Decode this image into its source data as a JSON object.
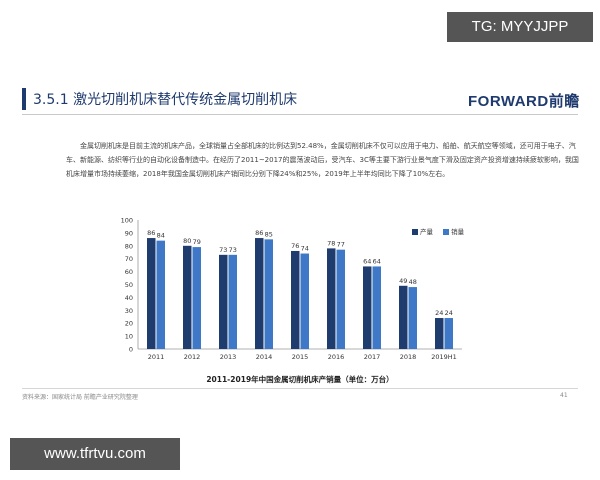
{
  "watermarks": {
    "top": "TG: MYYJJPP",
    "bottom": "www.tfrtvu.com"
  },
  "header": {
    "section_title": "3.5.1  激光切削机床替代传统金属切削机床",
    "logo": "FORWARD前瞻"
  },
  "body_text": "金属切削机床是目前主流的机床产品，全球销量占全部机床的比例达到52.48%，金属切削机床不仅可以应用于电力、船舶、航天航空等领域，还可用于电子、汽车、新能源、纺织等行业的自动化设备制造中。在经历了2011~2017的震荡波动后，受汽车、3C等主要下游行业景气度下滑及固定资产投资增速持续疲软影响，我国机床增量市场持续萎缩，2018年我国金属切削机床产销同比分别下降24%和25%，2019年上半年均同比下降了10%左右。",
  "colors": {
    "produce": "#1f3c6e",
    "sales": "#3e78c6",
    "accent": "#1e3a6e"
  },
  "chart_data": {
    "type": "bar",
    "title": "2011-2019年中国金属切削机床产销量（单位：万台）",
    "categories": [
      "2011",
      "2012",
      "2013",
      "2014",
      "2015",
      "2016",
      "2017",
      "2018",
      "2019H1"
    ],
    "series": [
      {
        "name": "产量",
        "values": [
          86,
          80,
          73,
          86,
          76,
          78,
          64,
          49,
          24
        ]
      },
      {
        "name": "销量",
        "values": [
          84,
          79,
          73,
          85,
          74,
          77,
          64,
          48,
          24
        ]
      }
    ],
    "yticks": [
      0,
      10,
      20,
      30,
      40,
      50,
      60,
      70,
      80,
      90,
      100
    ],
    "ylim": [
      0,
      100
    ],
    "legend_position": "top-right"
  },
  "footer": {
    "source": "资料来源：国家统计局  前瞻产业研究院整理",
    "page_number": "41"
  }
}
